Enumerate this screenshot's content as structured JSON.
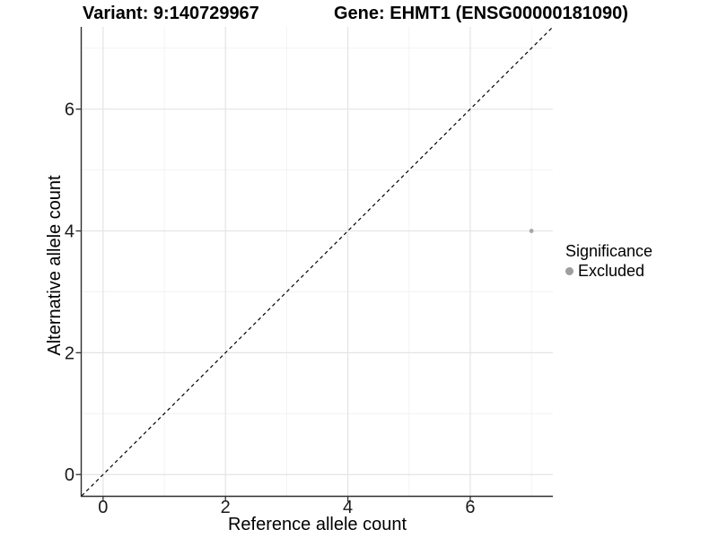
{
  "titles": {
    "variant": "Variant: 9:140729967",
    "gene": "Gene: EHMT1 (ENSG00000181090)"
  },
  "chart_data": {
    "type": "scatter",
    "xlabel": "Reference allele count",
    "ylabel": "Alternative allele count",
    "xlim": [
      -0.35,
      7.35
    ],
    "ylim": [
      -0.35,
      7.35
    ],
    "x_major_ticks": [
      0,
      2,
      4,
      6
    ],
    "y_major_ticks": [
      0,
      2,
      4,
      6
    ],
    "x_minor_gridlines": [
      1,
      3,
      5,
      7
    ],
    "y_minor_gridlines": [
      1,
      3,
      5,
      7
    ],
    "grid": true,
    "reference_line": {
      "type": "identity",
      "linetype": "dashed",
      "color": "#000000"
    },
    "series": [
      {
        "name": "Excluded",
        "color": "#a6a6a6",
        "points": [
          [
            7,
            4
          ]
        ]
      }
    ],
    "legend": {
      "title": "Significance",
      "position": "right",
      "entries": [
        {
          "label": "Excluded",
          "color": "#9e9e9e"
        }
      ]
    }
  },
  "style": {
    "grid_major_color": "#e4e4e4",
    "grid_minor_color": "#f0f0f0",
    "axis_line_color": "#2e2e2e",
    "tick_color": "#333333",
    "tick_label_color": "#1a1a1a",
    "background_color": "#ffffff"
  }
}
